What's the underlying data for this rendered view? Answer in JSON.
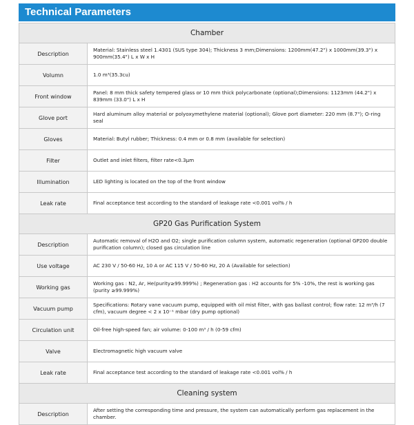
{
  "header": {
    "title": "Technical Parameters"
  },
  "sections": [
    {
      "title": "Chamber",
      "rows": [
        {
          "label": "Description",
          "value": "Material: Stainless steel 1.4301 (SUS type 304); Thickness 3 mm;Dimensions: 1200mm(47.2\") x 1000mm(39.3\") x 900mm(35.4\") L x W x H"
        },
        {
          "label": "Volumn",
          "value": "1.0 m³(35.3cu)"
        },
        {
          "label": "Front window",
          "value": "Panel: 8 mm thick safety tempered glass or 10 mm thick polycarbonate (optional);Dimensions: 1123mm (44.2\") x 839mm (33.0\") L x H"
        },
        {
          "label": "Glove port",
          "value": "Hard aluminum alloy material or polyoxymethylene material (optional); Glove port diameter: 220 mm (8.7\"); O-ring seal"
        },
        {
          "label": "Gloves",
          "value": "Material: Butyl rubber; Thickness: 0.4 mm or 0.8 mm (available for selection)"
        },
        {
          "label": "Filter",
          "value": "Outlet and inlet filters, filter rate<0.3μm"
        },
        {
          "label": "Illumination",
          "value": "LED lighting is located on the top of the front window"
        },
        {
          "label": "Leak rate",
          "value": "Final acceptance test according to the standard of leakage rate <0.001 vol% / h"
        }
      ]
    },
    {
      "title": "GP20 Gas Purification System",
      "rows": [
        {
          "label": "Description",
          "value": "Automatic removal of H2O and O2; single purification column system, automatic regeneration (optional GP200 double purification column); closed gas circulation line"
        },
        {
          "label": "Use voltage",
          "value": "AC 230 V / 50-60 Hz, 10 A  or  AC 115 V / 50-60 Hz, 20 A (Available for selection)"
        },
        {
          "label": "Working gas",
          "value": "Working gas : N2,  Ar,  He(purity≥99.999%) ; Regeneration gas : H2 accounts for 5% -10%, the rest is working gas (purity ≥99.999%)"
        },
        {
          "label": "Vacuum pump",
          "value": "Specifications: Rotary vane vacuum pump, equipped with oil mist filter, with gas ballast control; flow rate: 12 m³/h (7 cfm), vacuum degree < 2 x 10⁻¹  mbar (dry pump optional)"
        },
        {
          "label": "Circulation unit",
          "value": "Oil-free high-speed fan; air volume: 0-100 m³ / h (0-59 cfm)"
        },
        {
          "label": "Valve",
          "value": "Electromagnetic high vacuum valve"
        },
        {
          "label": "Leak rate",
          "value": "Final acceptance test according to the standard of leakage rate <0.001 vol% / h"
        }
      ]
    },
    {
      "title": "Cleaning system",
      "rows": [
        {
          "label": "Description",
          "value": "After setting the corresponding time and pressure, the system can automatically perform gas replacement in the chamber."
        }
      ]
    }
  ]
}
